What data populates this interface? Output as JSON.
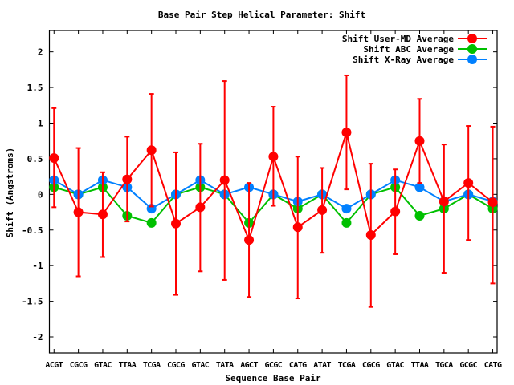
{
  "chart_data": {
    "type": "line",
    "title": "Base Pair Step Helical Parameter: Shift",
    "xlabel": "Sequence Base Pair",
    "ylabel": "Shift (Angstroms)",
    "ylim": [
      -2.225,
      2.3
    ],
    "xlim": [
      -0.19,
      18.18
    ],
    "yticks": [
      2,
      1.5,
      1,
      0.5,
      0,
      -0.5,
      -1,
      -1.5,
      -2
    ],
    "ytick_labels": [
      "2",
      "1.5",
      "1",
      "0.5",
      "0",
      "-0.5",
      "-1",
      "-1.5",
      "-2"
    ],
    "grid": false,
    "legend_position": "top-right",
    "categories": [
      "ACGT",
      "CGCG",
      "GTAC",
      "TTAA",
      "TCGA",
      "CGCG",
      "GTAC",
      "TATA",
      "AGCT",
      "GCGC",
      "CATG",
      "ATAT",
      "TCGA",
      "CGCG",
      "GTAC",
      "TTAA",
      "TGCA",
      "GCGC",
      "CATG"
    ],
    "series": [
      {
        "name": "Shift User-MD Average",
        "color": "#ff0000",
        "values": [
          0.51,
          -0.25,
          -0.28,
          0.21,
          0.62,
          -0.41,
          -0.18,
          0.2,
          -0.64,
          0.53,
          -0.46,
          -0.22,
          0.87,
          -0.57,
          -0.24,
          0.75,
          -0.1,
          0.16,
          -0.11
        ],
        "error_upper": [
          1.21,
          0.65,
          0.31,
          0.81,
          1.41,
          0.59,
          0.71,
          1.59,
          0.16,
          1.23,
          0.53,
          0.37,
          1.67,
          0.43,
          0.35,
          1.34,
          0.7,
          0.96,
          0.95
        ],
        "error_lower": [
          -0.18,
          -1.15,
          -0.88,
          -0.38,
          -0.17,
          -1.41,
          -1.08,
          -1.2,
          -1.44,
          -0.16,
          -1.46,
          -0.82,
          0.07,
          -1.58,
          -0.84,
          0.16,
          -1.1,
          -0.64,
          -1.25
        ]
      },
      {
        "name": "Shift ABC Average",
        "color": "#00c000",
        "values": [
          0.1,
          0.0,
          0.1,
          -0.3,
          -0.4,
          0.0,
          0.1,
          0.0,
          -0.4,
          0.0,
          -0.2,
          0.0,
          -0.4,
          0.0,
          0.1,
          -0.3,
          -0.2,
          0.0,
          -0.2
        ]
      },
      {
        "name": "Shift X-Ray Average",
        "color": "#0080ff",
        "values": [
          0.2,
          0.0,
          0.2,
          0.1,
          -0.2,
          0.0,
          0.2,
          0.0,
          0.1,
          0.0,
          -0.1,
          0.0,
          -0.2,
          0.0,
          0.2,
          0.1,
          -0.1,
          0.0,
          -0.1
        ]
      }
    ]
  }
}
